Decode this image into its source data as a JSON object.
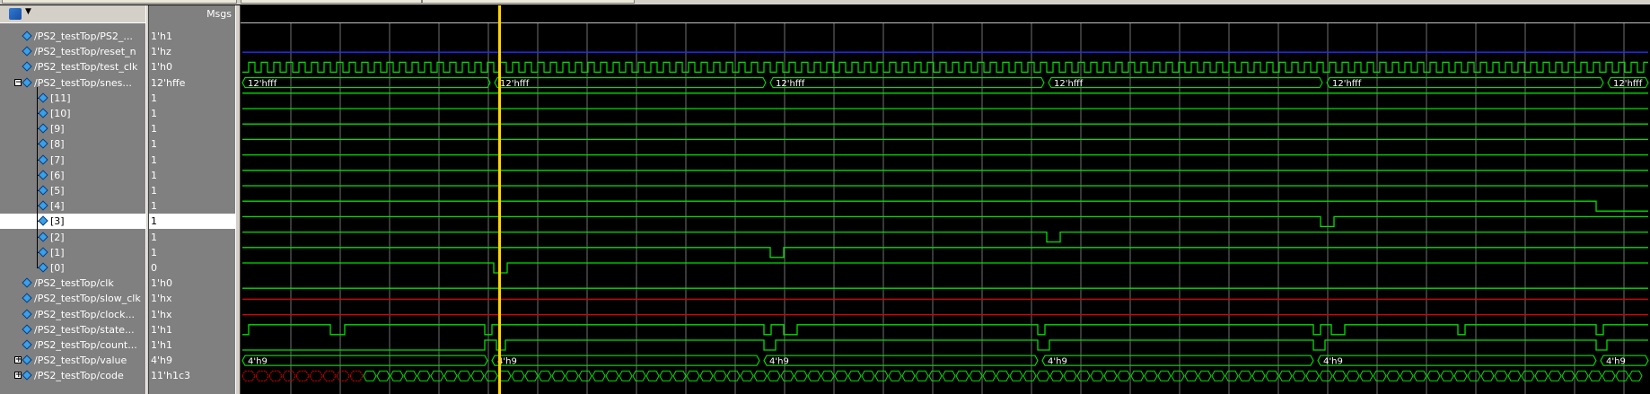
{
  "header": {
    "msgs_label": "Msgs"
  },
  "colors": {
    "wave_green": "#00e000",
    "hiz_blue": "#2030ff",
    "unknown_red": "#e00000",
    "grid": "#707070",
    "cursor": "#ffd400",
    "selected_row": "#ffffff"
  },
  "signals": [
    {
      "name": "/PS2_testTop/PS2_...",
      "value": "1'h1",
      "indent": 0,
      "expander": "",
      "wave": "digital",
      "pattern": "ps2"
    },
    {
      "name": "/PS2_testTop/reset_n",
      "value": "1'hz",
      "indent": 0,
      "expander": "",
      "wave": "hiz"
    },
    {
      "name": "/PS2_testTop/test_clk",
      "value": "1'h0",
      "indent": 0,
      "expander": "",
      "wave": "clock"
    },
    {
      "name": "/PS2_testTop/snes...",
      "value": "12'hffe",
      "indent": 0,
      "expander": "-",
      "wave": "bus",
      "bus_label": "12'hfff"
    },
    {
      "name": "[11]",
      "value": "1",
      "indent": 1,
      "expander": "",
      "wave": "flat_high"
    },
    {
      "name": "[10]",
      "value": "1",
      "indent": 1,
      "expander": "",
      "wave": "flat_high"
    },
    {
      "name": "[9]",
      "value": "1",
      "indent": 1,
      "expander": "",
      "wave": "flat_high"
    },
    {
      "name": "[8]",
      "value": "1",
      "indent": 1,
      "expander": "",
      "wave": "flat_high"
    },
    {
      "name": "[7]",
      "value": "1",
      "indent": 1,
      "expander": "",
      "wave": "flat_high"
    },
    {
      "name": "[6]",
      "value": "1",
      "indent": 1,
      "expander": "",
      "wave": "flat_high"
    },
    {
      "name": "[5]",
      "value": "1",
      "indent": 1,
      "expander": "",
      "wave": "flat_high"
    },
    {
      "name": "[4]",
      "value": "1",
      "indent": 1,
      "expander": "",
      "wave": "bit4"
    },
    {
      "name": "[3]",
      "value": "1",
      "indent": 1,
      "expander": "",
      "wave": "bit3",
      "selected": true
    },
    {
      "name": "[2]",
      "value": "1",
      "indent": 1,
      "expander": "",
      "wave": "bit2"
    },
    {
      "name": "[1]",
      "value": "1",
      "indent": 1,
      "expander": "",
      "wave": "bit1"
    },
    {
      "name": "[0]",
      "value": "0",
      "indent": 1,
      "expander": "",
      "wave": "bit0"
    },
    {
      "name": "/PS2_testTop/clk",
      "value": "1'h0",
      "indent": 0,
      "expander": "",
      "wave": "flat_low"
    },
    {
      "name": "/PS2_testTop/slow_clk",
      "value": "1'hx",
      "indent": 0,
      "expander": "",
      "wave": "unknown"
    },
    {
      "name": "/PS2_testTop/clock...",
      "value": "1'hx",
      "indent": 0,
      "expander": "",
      "wave": "unknown"
    },
    {
      "name": "/PS2_testTop/state...",
      "value": "1'h1",
      "indent": 0,
      "expander": "",
      "wave": "state"
    },
    {
      "name": "/PS2_testTop/count...",
      "value": "1'h1",
      "indent": 0,
      "expander": "",
      "wave": "count"
    },
    {
      "name": "/PS2_testTop/value",
      "value": "4'h9",
      "indent": 0,
      "expander": "+",
      "wave": "bus",
      "bus_label": "4'h9"
    },
    {
      "name": "/PS2_testTop/code",
      "value": "11'h1c3",
      "indent": 0,
      "expander": "+",
      "wave": "code"
    }
  ]
}
